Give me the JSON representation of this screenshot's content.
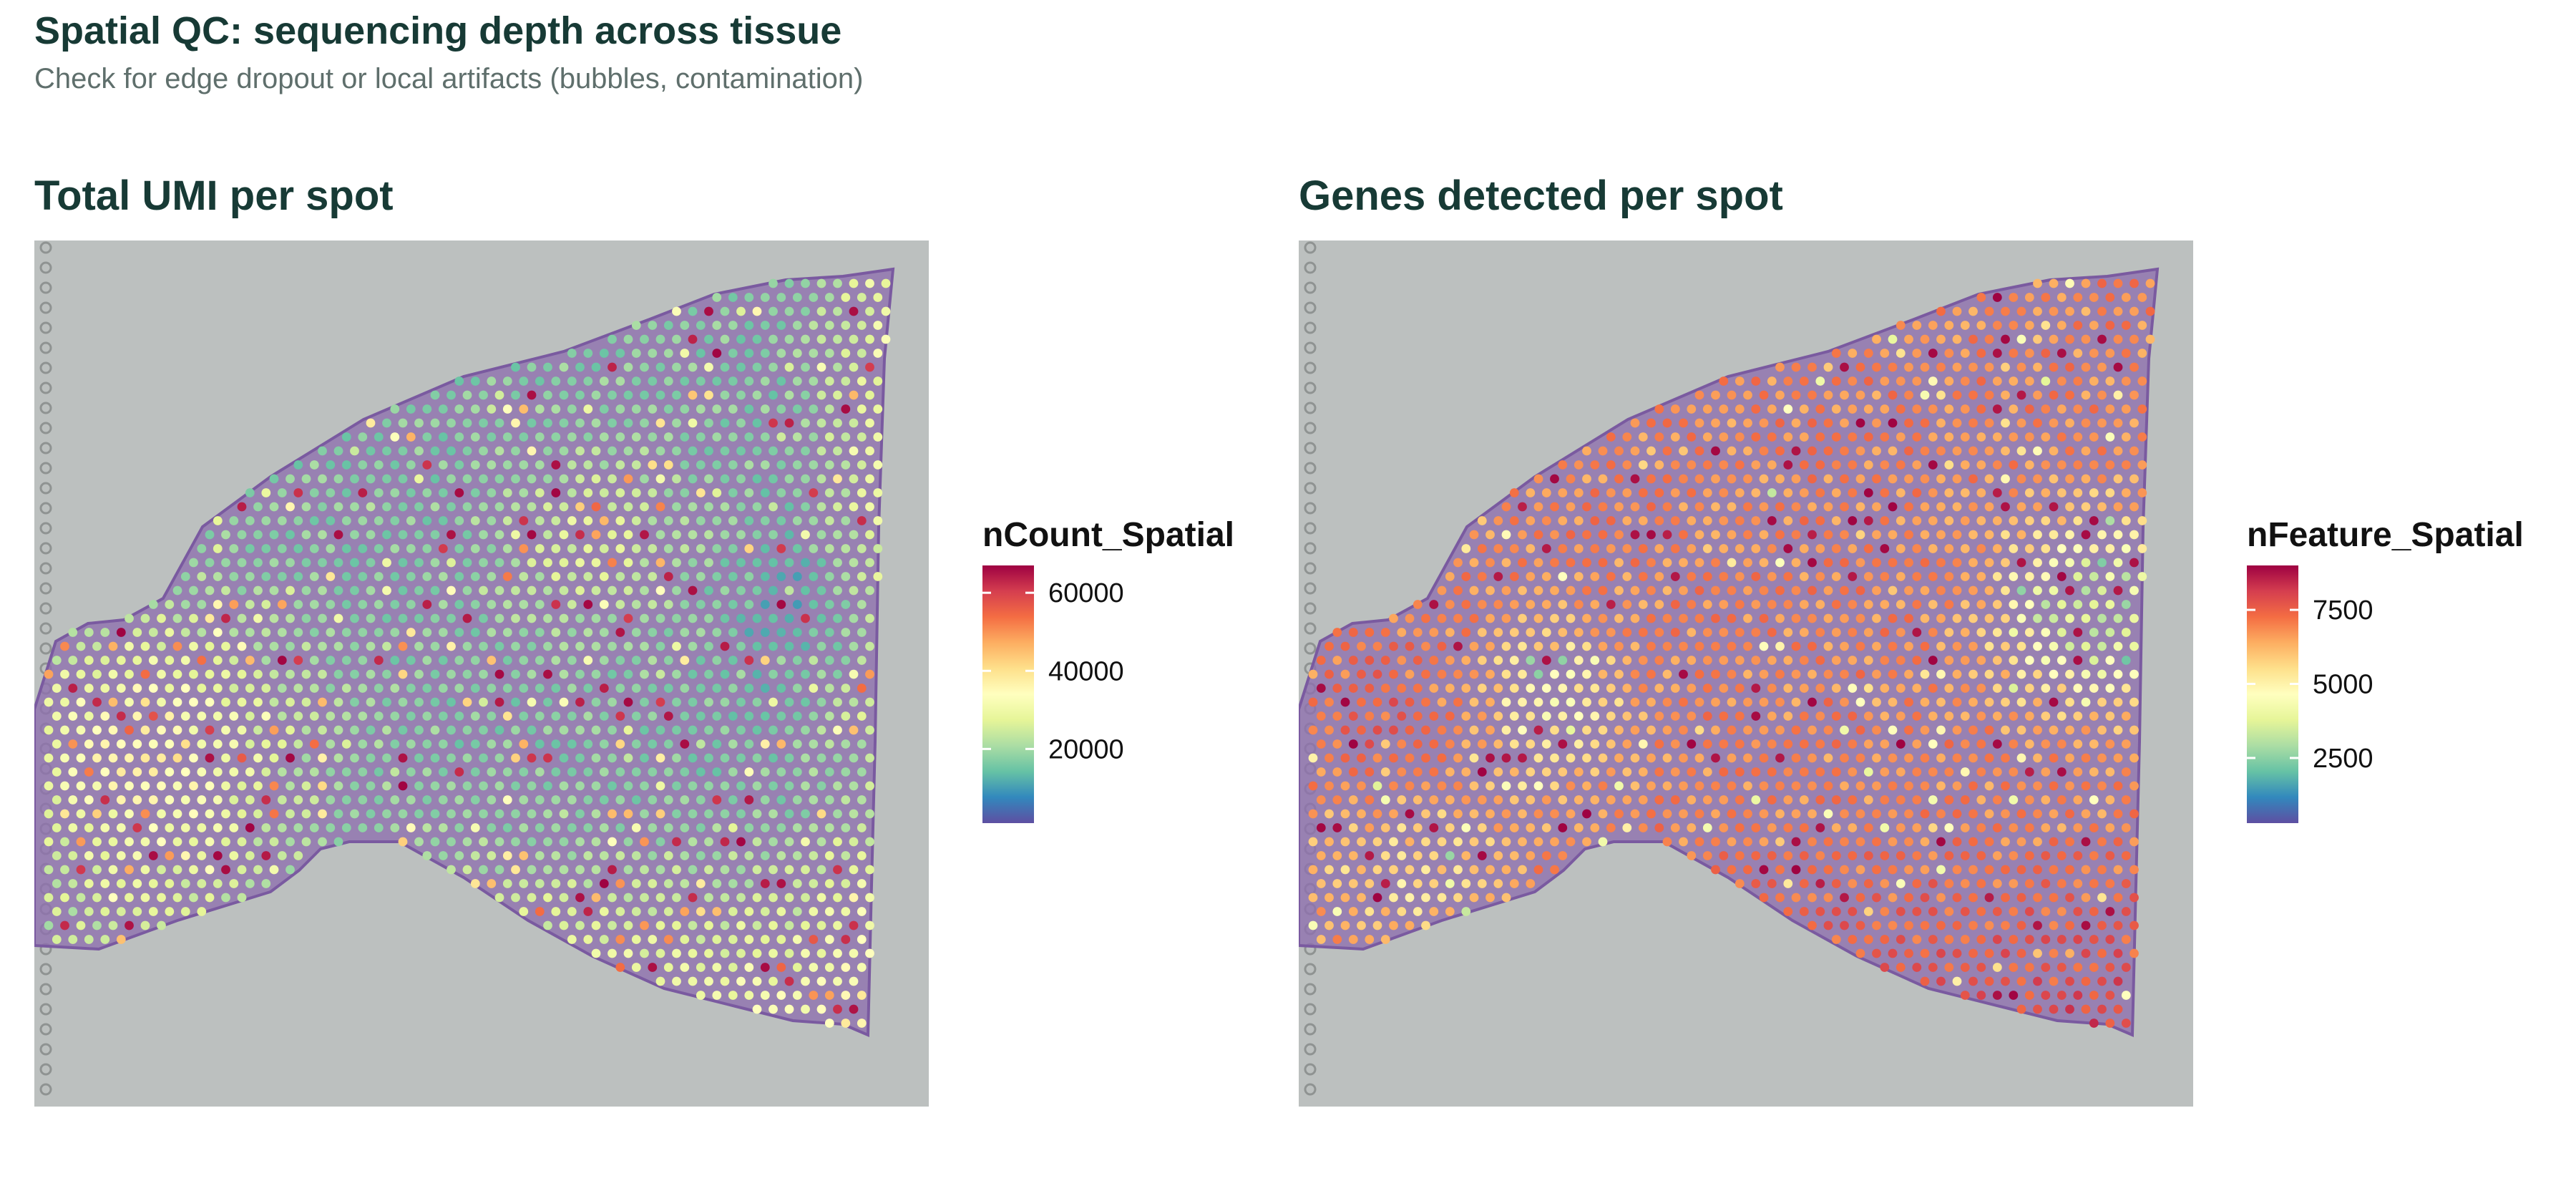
{
  "title": "Spatial QC: sequencing depth across tissue",
  "subtitle": "Check for edge dropout or local artifacts (bubbles, contamination)",
  "palette": [
    "#5e4fa2",
    "#3288bd",
    "#66c2a5",
    "#abdda4",
    "#e6f598",
    "#ffffbf",
    "#fee08b",
    "#fdae61",
    "#f46d43",
    "#d53e4f",
    "#9e0142"
  ],
  "background_colors": {
    "slide": "#bcc0bf",
    "tissue": "#8e6fae"
  },
  "chart_data": [
    {
      "type": "spatial-scatter",
      "title": "Total UMI per spot",
      "legend": {
        "title": "nCount_Spatial",
        "placement": "right",
        "range": [
          1000,
          67000
        ],
        "ticks": [
          {
            "value": 20000,
            "label": "20000"
          },
          {
            "value": 40000,
            "label": "40000"
          },
          {
            "value": 60000,
            "label": "60000"
          }
        ]
      },
      "pattern": "mostly low counts (blue/purple) in centre, higher counts (yellow/orange/red) toward the lower and right edges, yellow cluster on left lobe"
    },
    {
      "type": "spatial-scatter",
      "title": "Genes detected per spot",
      "legend": {
        "title": "nFeature_Spatial",
        "placement": "right",
        "range": [
          300,
          9000
        ],
        "ticks": [
          {
            "value": 2500,
            "label": "2500"
          },
          {
            "value": 5000,
            "label": "5000"
          },
          {
            "value": 7500,
            "label": "7500"
          }
        ]
      },
      "pattern": "mostly high gene counts (orange/red) across tissue, lower (blue) pockets at right-middle"
    }
  ]
}
